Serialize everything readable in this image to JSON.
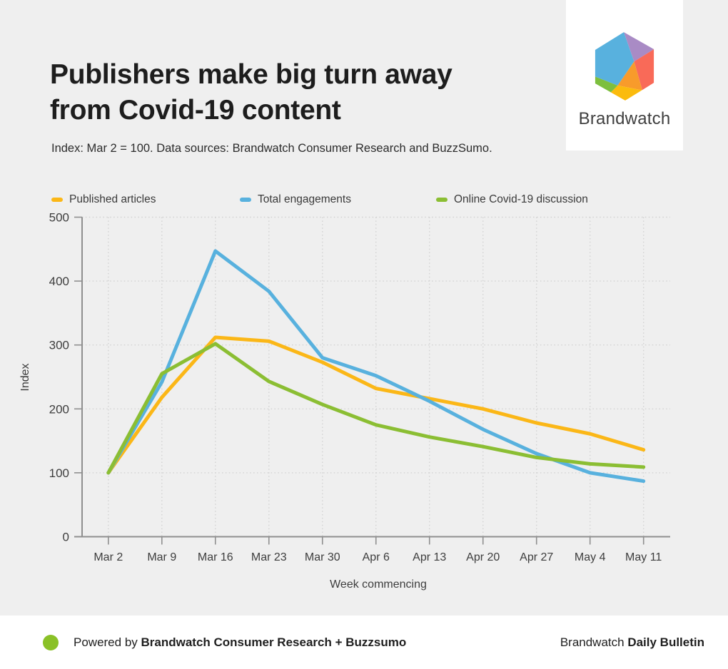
{
  "title_lines": [
    "Publishers make big turn away",
    "from Covid-19 content"
  ],
  "subtitle": "Index: Mar 2 = 100. Data sources: Brandwatch Consumer Research and BuzzSumo.",
  "logo": {
    "text": "Brandwatch",
    "colors": {
      "blue": "#58B1DE",
      "purple": "#A98BC5",
      "coral": "#F96A58",
      "orange": "#F89B2B",
      "yellow": "#FBBB0E",
      "green": "#7DBF3E"
    }
  },
  "chart_data": {
    "type": "line",
    "title": "Publishers make big turn away from Covid-19 content",
    "xlabel": "Week commencing",
    "ylabel": "Index",
    "ylim": [
      0,
      500
    ],
    "yticks": [
      0,
      100,
      200,
      300,
      400,
      500
    ],
    "grid": "dotted",
    "legend_position": "top-left",
    "categories": [
      "Mar 2",
      "Mar 9",
      "Mar 16",
      "Mar 23",
      "Mar 30",
      "Apr 6",
      "Apr 13",
      "Apr 20",
      "Apr 27",
      "May 4",
      "May 11"
    ],
    "series": [
      {
        "name": "Published articles",
        "color": "#FBB717",
        "values": [
          100,
          218,
          312,
          306,
          273,
          232,
          216,
          200,
          178,
          161,
          136
        ]
      },
      {
        "name": "Total engagements",
        "color": "#58B1DE",
        "values": [
          100,
          242,
          447,
          384,
          280,
          252,
          212,
          168,
          130,
          100,
          87
        ]
      },
      {
        "name": "Online Covid-19 discussion",
        "color": "#8BBE33",
        "values": [
          100,
          255,
          302,
          243,
          207,
          175,
          156,
          141,
          124,
          114,
          109
        ]
      }
    ]
  },
  "footer": {
    "dot_color": "#8AC127",
    "powered_prefix": "Powered by ",
    "powered_bold": "Brandwatch Consumer Research + Buzzsumo",
    "brand_prefix": "Brandwatch ",
    "brand_bold": "Daily Bulletin"
  },
  "background": "#EFEFEF"
}
